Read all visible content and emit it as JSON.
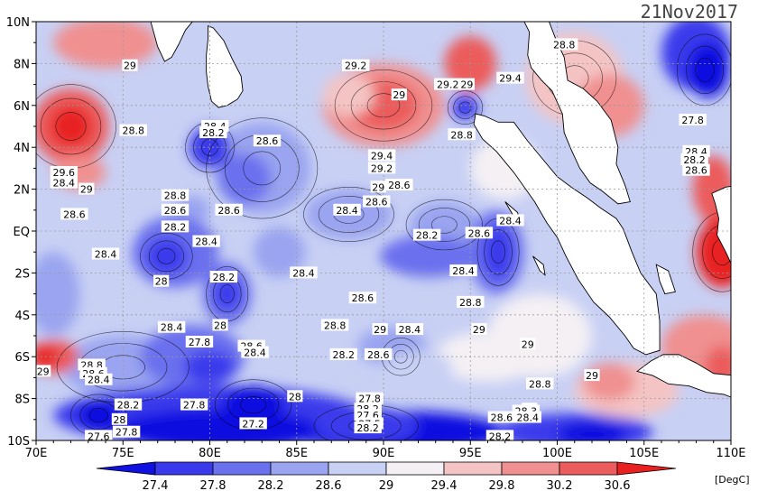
{
  "title_date": "21Nov2017",
  "units": "[DegC]",
  "x_axis": {
    "ticks": [
      "70E",
      "75E",
      "80E",
      "85E",
      "90E",
      "95E",
      "100E",
      "105E",
      "110E"
    ],
    "values": [
      70,
      75,
      80,
      85,
      90,
      95,
      100,
      105,
      110
    ]
  },
  "y_axis": {
    "ticks": [
      "10N",
      "8N",
      "6N",
      "4N",
      "2N",
      "EQ",
      "2S",
      "4S",
      "6S",
      "8S",
      "10S"
    ],
    "values": [
      10,
      8,
      6,
      4,
      2,
      0,
      -2,
      -4,
      -6,
      -8,
      -10
    ]
  },
  "colorbar": {
    "labels": [
      "27.4",
      "27.8",
      "28.2",
      "28.6",
      "29",
      "29.4",
      "29.8",
      "30.2",
      "30.6"
    ],
    "colors": [
      "#1010e0",
      "#3a3aec",
      "#6a70ee",
      "#9aa4f0",
      "#c8d0f4",
      "#f4f0f4",
      "#f4c4c4",
      "#f09090",
      "#ec5c5c",
      "#e82020"
    ]
  },
  "land": [
    "India",
    "Sri Lanka",
    "Sumatra",
    "Malay Peninsula",
    "Java",
    "Borneo"
  ],
  "contour_labels": [
    {
      "t": "29",
      "lon": 75.4,
      "lat": 7.9
    },
    {
      "t": "29.2",
      "lon": 88.4,
      "lat": 7.9
    },
    {
      "t": "29.4",
      "lon": 97.3,
      "lat": 7.3
    },
    {
      "t": "28.8",
      "lon": 100.4,
      "lat": 8.9
    },
    {
      "t": "29",
      "lon": 90.9,
      "lat": 6.5
    },
    {
      "t": "29.2",
      "lon": 93.7,
      "lat": 7.0
    },
    {
      "t": "29",
      "lon": 94.8,
      "lat": 7.0
    },
    {
      "t": "28.8",
      "lon": 75.6,
      "lat": 4.8
    },
    {
      "t": "28.4",
      "lon": 80.3,
      "lat": 5.0
    },
    {
      "t": "28.2",
      "lon": 80.2,
      "lat": 4.7
    },
    {
      "t": "28.6",
      "lon": 83.3,
      "lat": 4.3
    },
    {
      "t": "27.8",
      "lon": 107.8,
      "lat": 5.3
    },
    {
      "t": "28.8",
      "lon": 94.5,
      "lat": 4.6
    },
    {
      "t": "29.4",
      "lon": 89.9,
      "lat": 3.6
    },
    {
      "t": "28.4",
      "lon": 108.0,
      "lat": 3.8
    },
    {
      "t": "28.2",
      "lon": 107.9,
      "lat": 3.4
    },
    {
      "t": "28.6",
      "lon": 108.0,
      "lat": 2.9
    },
    {
      "t": "29.2",
      "lon": 89.9,
      "lat": 3.0
    },
    {
      "t": "29.6",
      "lon": 71.6,
      "lat": 2.8
    },
    {
      "t": "28.4",
      "lon": 71.6,
      "lat": 2.3
    },
    {
      "t": "29",
      "lon": 72.9,
      "lat": 2.0
    },
    {
      "t": "29",
      "lon": 89.7,
      "lat": 2.1
    },
    {
      "t": "28.6",
      "lon": 90.9,
      "lat": 2.2
    },
    {
      "t": "28.8",
      "lon": 78.0,
      "lat": 1.7
    },
    {
      "t": "28.6",
      "lon": 89.6,
      "lat": 1.4
    },
    {
      "t": "28.6",
      "lon": 78.0,
      "lat": 1.0
    },
    {
      "t": "28.6",
      "lon": 81.1,
      "lat": 1.0
    },
    {
      "t": "28.4",
      "lon": 87.9,
      "lat": 1.0
    },
    {
      "t": "28.6",
      "lon": 72.2,
      "lat": 0.8
    },
    {
      "t": "28.4",
      "lon": 97.3,
      "lat": 0.5
    },
    {
      "t": "28.2",
      "lon": 78.0,
      "lat": 0.2
    },
    {
      "t": "28.2",
      "lon": 92.5,
      "lat": -0.2
    },
    {
      "t": "28.6",
      "lon": 95.5,
      "lat": -0.1
    },
    {
      "t": "28.4",
      "lon": 79.8,
      "lat": -0.5
    },
    {
      "t": "28.4",
      "lon": 74.0,
      "lat": -1.1
    },
    {
      "t": "28.4",
      "lon": 85.4,
      "lat": -2.0
    },
    {
      "t": "28.4",
      "lon": 94.6,
      "lat": -1.9
    },
    {
      "t": "28",
      "lon": 77.2,
      "lat": -2.4
    },
    {
      "t": "28.2",
      "lon": 80.8,
      "lat": -2.2
    },
    {
      "t": "28.6",
      "lon": 88.8,
      "lat": -3.2
    },
    {
      "t": "28.8",
      "lon": 95.0,
      "lat": -3.4
    },
    {
      "t": "28.4",
      "lon": 77.8,
      "lat": -4.6
    },
    {
      "t": "28",
      "lon": 80.6,
      "lat": -4.5
    },
    {
      "t": "28.8",
      "lon": 87.2,
      "lat": -4.5
    },
    {
      "t": "29",
      "lon": 89.8,
      "lat": -4.7
    },
    {
      "t": "28.4",
      "lon": 91.5,
      "lat": -4.7
    },
    {
      "t": "29",
      "lon": 95.5,
      "lat": -4.7
    },
    {
      "t": "27.8",
      "lon": 79.4,
      "lat": -5.3
    },
    {
      "t": "28.6",
      "lon": 82.4,
      "lat": -5.5
    },
    {
      "t": "28.4",
      "lon": 82.6,
      "lat": -5.8
    },
    {
      "t": "28.2",
      "lon": 87.7,
      "lat": -5.9
    },
    {
      "t": "28.6",
      "lon": 89.7,
      "lat": -5.9
    },
    {
      "t": "29",
      "lon": 98.3,
      "lat": -5.4
    },
    {
      "t": "29",
      "lon": 70.4,
      "lat": -6.7
    },
    {
      "t": "28.8",
      "lon": 73.2,
      "lat": -6.4
    },
    {
      "t": "28.6",
      "lon": 73.3,
      "lat": -6.8
    },
    {
      "t": "28.4",
      "lon": 73.6,
      "lat": -7.1
    },
    {
      "t": "28.8",
      "lon": 99.0,
      "lat": -7.3
    },
    {
      "t": "29",
      "lon": 102.0,
      "lat": -6.9
    },
    {
      "t": "28",
      "lon": 84.9,
      "lat": -7.9
    },
    {
      "t": "27.8",
      "lon": 89.2,
      "lat": -8.0
    },
    {
      "t": "28.2",
      "lon": 75.3,
      "lat": -8.3
    },
    {
      "t": "27.8",
      "lon": 79.1,
      "lat": -8.3
    },
    {
      "t": "28.2",
      "lon": 89.1,
      "lat": -8.5
    },
    {
      "t": "27.6",
      "lon": 89.1,
      "lat": -8.8
    },
    {
      "t": "29",
      "lon": 98.4,
      "lat": -8.5
    },
    {
      "t": "28.3",
      "lon": 98.2,
      "lat": -8.6
    },
    {
      "t": "28.6",
      "lon": 96.8,
      "lat": -8.9
    },
    {
      "t": "28.4",
      "lon": 98.3,
      "lat": -8.9
    },
    {
      "t": "28",
      "lon": 74.8,
      "lat": -9.0
    },
    {
      "t": "27.2",
      "lon": 82.5,
      "lat": -9.2
    },
    {
      "t": "27.5",
      "lon": 89.2,
      "lat": -9.2
    },
    {
      "t": "28.2",
      "lon": 89.1,
      "lat": -9.4
    },
    {
      "t": "27.8",
      "lon": 75.2,
      "lat": -9.6
    },
    {
      "t": "27.6",
      "lon": 73.6,
      "lat": -9.8
    },
    {
      "t": "28.2",
      "lon": 96.7,
      "lat": -9.8
    }
  ]
}
